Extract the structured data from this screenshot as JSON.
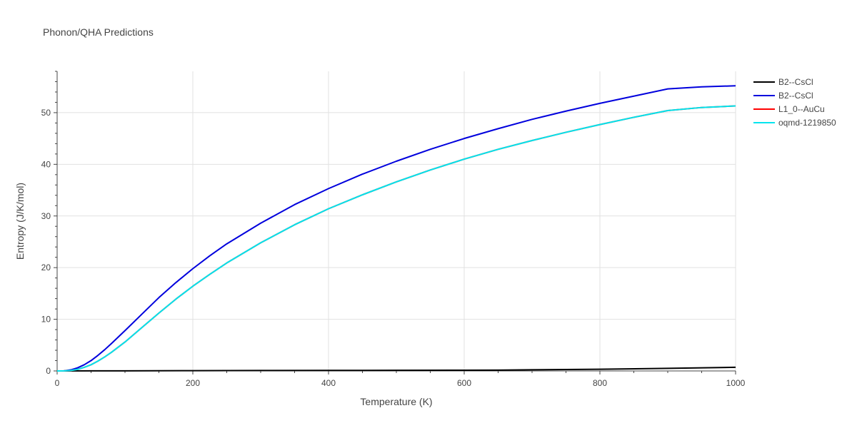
{
  "chart_data": {
    "type": "line",
    "title": "Phonon/QHA Predictions",
    "xlabel": "Temperature (K)",
    "ylabel": "Entropy (J/K/mol)",
    "xlim": [
      0,
      1000
    ],
    "ylim": [
      0,
      58
    ],
    "xticks": [
      0,
      200,
      400,
      600,
      800,
      1000
    ],
    "yticks": [
      0,
      10,
      20,
      30,
      40,
      50
    ],
    "grid": true,
    "legend_position": "top-right, outside plot",
    "series": [
      {
        "name": "B2--CsCl",
        "color": "#000000",
        "x": [
          0,
          100,
          200,
          300,
          400,
          500,
          600,
          650,
          700,
          800,
          900,
          1000
        ],
        "y": [
          0,
          0.02,
          0.05,
          0.08,
          0.1,
          0.12,
          0.14,
          0.16,
          0.22,
          0.32,
          0.5,
          0.7
        ]
      },
      {
        "name": "B2--CsCl",
        "color": "#0000dd",
        "x": [
          0,
          10,
          20,
          30,
          40,
          50,
          60,
          70,
          80,
          100,
          125,
          150,
          175,
          200,
          225,
          250,
          300,
          350,
          400,
          450,
          500,
          550,
          600,
          650,
          700,
          750,
          800,
          850,
          900,
          950,
          1000
        ],
        "y": [
          0,
          0.02,
          0.2,
          0.6,
          1.2,
          2.0,
          3.0,
          4.1,
          5.3,
          7.8,
          11.0,
          14.2,
          17.1,
          19.8,
          22.3,
          24.6,
          28.6,
          32.2,
          35.3,
          38.1,
          40.6,
          42.9,
          45.0,
          46.9,
          48.7,
          50.3,
          51.8,
          53.2,
          54.6,
          55.0,
          55.2
        ]
      },
      {
        "name": "L1_0--AuCu",
        "color": "#ff0000",
        "x": [
          0,
          10,
          20,
          30,
          40,
          50,
          60,
          70,
          80,
          100,
          125,
          150,
          175,
          200,
          225,
          250,
          300,
          350,
          400,
          450,
          500,
          550,
          600,
          650,
          700,
          750,
          800,
          850,
          900,
          950,
          1000
        ],
        "y": [
          0,
          0.01,
          0.08,
          0.3,
          0.7,
          1.2,
          1.9,
          2.7,
          3.6,
          5.6,
          8.4,
          11.2,
          13.9,
          16.4,
          18.7,
          20.9,
          24.8,
          28.3,
          31.4,
          34.1,
          36.6,
          38.9,
          41.0,
          42.9,
          44.6,
          46.2,
          47.7,
          49.1,
          50.4,
          51.0,
          51.3
        ]
      },
      {
        "name": "oqmd-1219850",
        "color": "#00e5ee",
        "x": [
          0,
          10,
          20,
          30,
          40,
          50,
          60,
          70,
          80,
          100,
          125,
          150,
          175,
          200,
          225,
          250,
          300,
          350,
          400,
          450,
          500,
          550,
          600,
          650,
          700,
          750,
          800,
          850,
          900,
          950,
          1000
        ],
        "y": [
          0,
          0.01,
          0.08,
          0.3,
          0.7,
          1.2,
          1.9,
          2.7,
          3.6,
          5.6,
          8.4,
          11.2,
          13.9,
          16.4,
          18.7,
          20.9,
          24.8,
          28.3,
          31.4,
          34.1,
          36.6,
          38.9,
          41.0,
          42.9,
          44.6,
          46.2,
          47.7,
          49.1,
          50.4,
          51.0,
          51.3
        ]
      }
    ]
  }
}
